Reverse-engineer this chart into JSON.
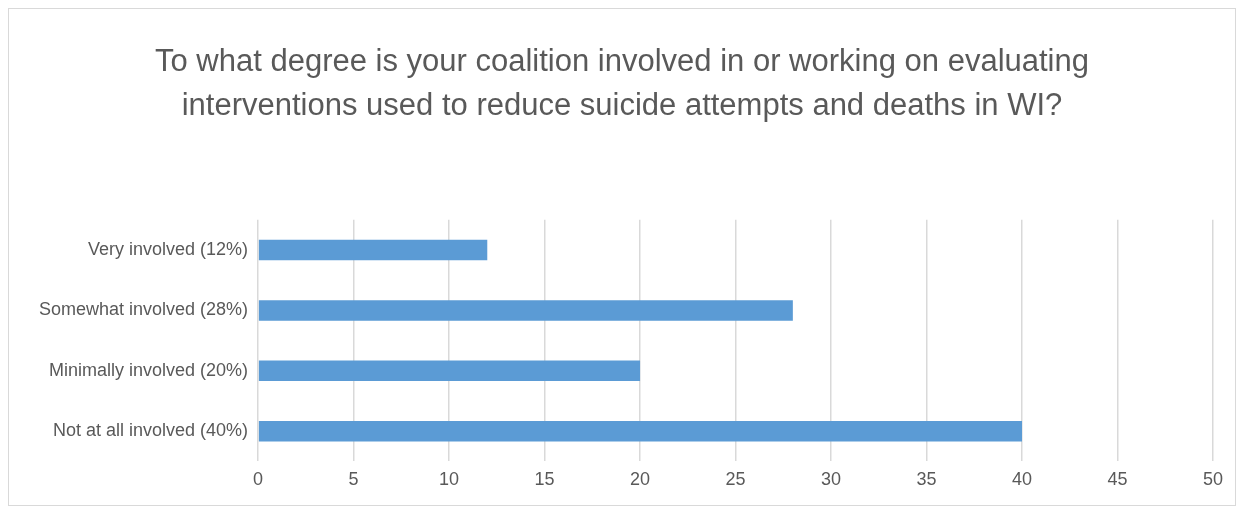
{
  "chart_data": {
    "type": "bar",
    "orientation": "horizontal",
    "title": "To what degree is your coalition involved in or working on evaluating interventions used to reduce suicide attempts and deaths in WI?",
    "categories": [
      "Very involved (12%)",
      "Somewhat involved (28%)",
      "Minimally involved (20%)",
      "Not at all involved (40%)"
    ],
    "values": [
      12,
      28,
      20,
      40
    ],
    "color": "#5b9bd5",
    "xlim": [
      0,
      50
    ],
    "xticks": [
      0,
      5,
      10,
      15,
      20,
      25,
      30,
      35,
      40,
      45,
      50
    ],
    "grid": "x",
    "legend": false
  }
}
